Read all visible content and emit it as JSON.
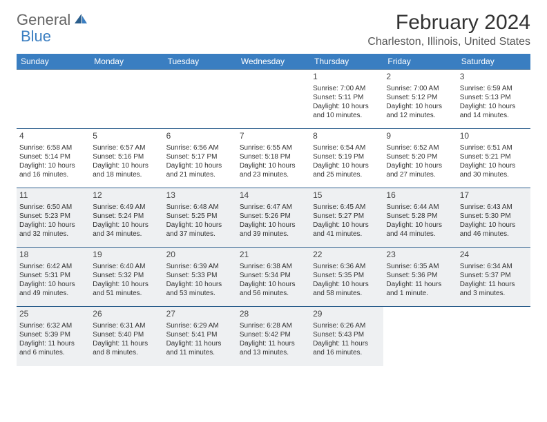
{
  "brand": {
    "general": "General",
    "blue": "Blue"
  },
  "title": "February 2024",
  "location": "Charleston, Illinois, United States",
  "colors": {
    "header_bg": "#3a7ec1",
    "header_text": "#ffffff",
    "row_border": "#2b5e8c",
    "shaded_bg": "#eef0f2",
    "text": "#333333"
  },
  "weekdays": [
    "Sunday",
    "Monday",
    "Tuesday",
    "Wednesday",
    "Thursday",
    "Friday",
    "Saturday"
  ],
  "weeks": [
    [
      {
        "day": "",
        "sunrise": "",
        "sunset": "",
        "daylight": ""
      },
      {
        "day": "",
        "sunrise": "",
        "sunset": "",
        "daylight": ""
      },
      {
        "day": "",
        "sunrise": "",
        "sunset": "",
        "daylight": ""
      },
      {
        "day": "",
        "sunrise": "",
        "sunset": "",
        "daylight": ""
      },
      {
        "day": "1",
        "sunrise": "Sunrise: 7:00 AM",
        "sunset": "Sunset: 5:11 PM",
        "daylight": "Daylight: 10 hours and 10 minutes."
      },
      {
        "day": "2",
        "sunrise": "Sunrise: 7:00 AM",
        "sunset": "Sunset: 5:12 PM",
        "daylight": "Daylight: 10 hours and 12 minutes."
      },
      {
        "day": "3",
        "sunrise": "Sunrise: 6:59 AM",
        "sunset": "Sunset: 5:13 PM",
        "daylight": "Daylight: 10 hours and 14 minutes."
      }
    ],
    [
      {
        "day": "4",
        "sunrise": "Sunrise: 6:58 AM",
        "sunset": "Sunset: 5:14 PM",
        "daylight": "Daylight: 10 hours and 16 minutes."
      },
      {
        "day": "5",
        "sunrise": "Sunrise: 6:57 AM",
        "sunset": "Sunset: 5:16 PM",
        "daylight": "Daylight: 10 hours and 18 minutes."
      },
      {
        "day": "6",
        "sunrise": "Sunrise: 6:56 AM",
        "sunset": "Sunset: 5:17 PM",
        "daylight": "Daylight: 10 hours and 21 minutes."
      },
      {
        "day": "7",
        "sunrise": "Sunrise: 6:55 AM",
        "sunset": "Sunset: 5:18 PM",
        "daylight": "Daylight: 10 hours and 23 minutes."
      },
      {
        "day": "8",
        "sunrise": "Sunrise: 6:54 AM",
        "sunset": "Sunset: 5:19 PM",
        "daylight": "Daylight: 10 hours and 25 minutes."
      },
      {
        "day": "9",
        "sunrise": "Sunrise: 6:52 AM",
        "sunset": "Sunset: 5:20 PM",
        "daylight": "Daylight: 10 hours and 27 minutes."
      },
      {
        "day": "10",
        "sunrise": "Sunrise: 6:51 AM",
        "sunset": "Sunset: 5:21 PM",
        "daylight": "Daylight: 10 hours and 30 minutes."
      }
    ],
    [
      {
        "day": "11",
        "sunrise": "Sunrise: 6:50 AM",
        "sunset": "Sunset: 5:23 PM",
        "daylight": "Daylight: 10 hours and 32 minutes."
      },
      {
        "day": "12",
        "sunrise": "Sunrise: 6:49 AM",
        "sunset": "Sunset: 5:24 PM",
        "daylight": "Daylight: 10 hours and 34 minutes."
      },
      {
        "day": "13",
        "sunrise": "Sunrise: 6:48 AM",
        "sunset": "Sunset: 5:25 PM",
        "daylight": "Daylight: 10 hours and 37 minutes."
      },
      {
        "day": "14",
        "sunrise": "Sunrise: 6:47 AM",
        "sunset": "Sunset: 5:26 PM",
        "daylight": "Daylight: 10 hours and 39 minutes."
      },
      {
        "day": "15",
        "sunrise": "Sunrise: 6:45 AM",
        "sunset": "Sunset: 5:27 PM",
        "daylight": "Daylight: 10 hours and 41 minutes."
      },
      {
        "day": "16",
        "sunrise": "Sunrise: 6:44 AM",
        "sunset": "Sunset: 5:28 PM",
        "daylight": "Daylight: 10 hours and 44 minutes."
      },
      {
        "day": "17",
        "sunrise": "Sunrise: 6:43 AM",
        "sunset": "Sunset: 5:30 PM",
        "daylight": "Daylight: 10 hours and 46 minutes."
      }
    ],
    [
      {
        "day": "18",
        "sunrise": "Sunrise: 6:42 AM",
        "sunset": "Sunset: 5:31 PM",
        "daylight": "Daylight: 10 hours and 49 minutes."
      },
      {
        "day": "19",
        "sunrise": "Sunrise: 6:40 AM",
        "sunset": "Sunset: 5:32 PM",
        "daylight": "Daylight: 10 hours and 51 minutes."
      },
      {
        "day": "20",
        "sunrise": "Sunrise: 6:39 AM",
        "sunset": "Sunset: 5:33 PM",
        "daylight": "Daylight: 10 hours and 53 minutes."
      },
      {
        "day": "21",
        "sunrise": "Sunrise: 6:38 AM",
        "sunset": "Sunset: 5:34 PM",
        "daylight": "Daylight: 10 hours and 56 minutes."
      },
      {
        "day": "22",
        "sunrise": "Sunrise: 6:36 AM",
        "sunset": "Sunset: 5:35 PM",
        "daylight": "Daylight: 10 hours and 58 minutes."
      },
      {
        "day": "23",
        "sunrise": "Sunrise: 6:35 AM",
        "sunset": "Sunset: 5:36 PM",
        "daylight": "Daylight: 11 hours and 1 minute."
      },
      {
        "day": "24",
        "sunrise": "Sunrise: 6:34 AM",
        "sunset": "Sunset: 5:37 PM",
        "daylight": "Daylight: 11 hours and 3 minutes."
      }
    ],
    [
      {
        "day": "25",
        "sunrise": "Sunrise: 6:32 AM",
        "sunset": "Sunset: 5:39 PM",
        "daylight": "Daylight: 11 hours and 6 minutes."
      },
      {
        "day": "26",
        "sunrise": "Sunrise: 6:31 AM",
        "sunset": "Sunset: 5:40 PM",
        "daylight": "Daylight: 11 hours and 8 minutes."
      },
      {
        "day": "27",
        "sunrise": "Sunrise: 6:29 AM",
        "sunset": "Sunset: 5:41 PM",
        "daylight": "Daylight: 11 hours and 11 minutes."
      },
      {
        "day": "28",
        "sunrise": "Sunrise: 6:28 AM",
        "sunset": "Sunset: 5:42 PM",
        "daylight": "Daylight: 11 hours and 13 minutes."
      },
      {
        "day": "29",
        "sunrise": "Sunrise: 6:26 AM",
        "sunset": "Sunset: 5:43 PM",
        "daylight": "Daylight: 11 hours and 16 minutes."
      },
      {
        "day": "",
        "sunrise": "",
        "sunset": "",
        "daylight": ""
      },
      {
        "day": "",
        "sunrise": "",
        "sunset": "",
        "daylight": ""
      }
    ]
  ],
  "shaded_rows": [
    2,
    3,
    4
  ]
}
